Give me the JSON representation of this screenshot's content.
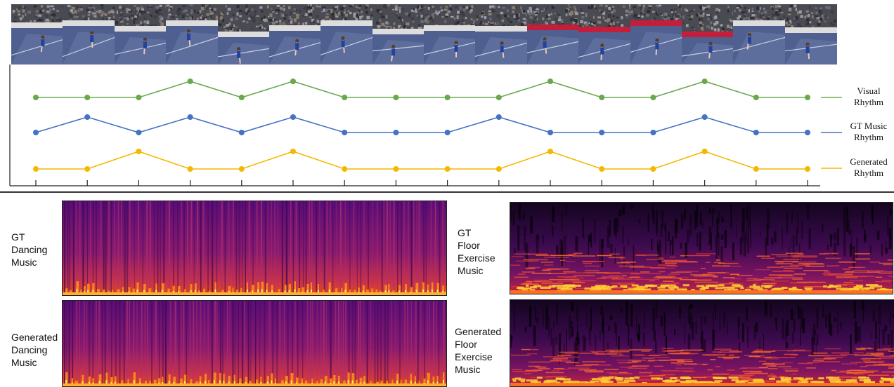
{
  "filmstrip": {
    "frame_count": 16
  },
  "chart_data": {
    "type": "line",
    "x": [
      1,
      2,
      3,
      4,
      5,
      6,
      7,
      8,
      9,
      10,
      11,
      12,
      13,
      14,
      15,
      16
    ],
    "series": [
      {
        "name": "Visual Rhythm",
        "color": "#6aa84f",
        "values": [
          1,
          1,
          1,
          2,
          1,
          2,
          1,
          1,
          1,
          1,
          2,
          1,
          1,
          2,
          1,
          1
        ]
      },
      {
        "name": "GT Music Rhythm",
        "color": "#4472c4",
        "values": [
          1,
          2,
          1,
          2,
          1,
          2,
          1,
          1,
          1,
          2,
          1,
          1,
          1,
          2,
          1,
          1
        ]
      },
      {
        "name": "Generated Rhythm",
        "color": "#f5b800",
        "values": [
          1,
          1,
          2,
          1,
          1,
          2,
          1,
          1,
          1,
          1,
          2,
          1,
          1,
          2,
          1,
          1
        ]
      }
    ],
    "legend": [
      {
        "line1": "Visual",
        "line2": "Rhythm"
      },
      {
        "line1": "GT Music",
        "line2": "Rhythm"
      },
      {
        "line1": "Generated",
        "line2": "Rhythm"
      }
    ],
    "legend_position": "right"
  },
  "spectrograms": [
    {
      "label": [
        "GT",
        "Dancing",
        "Music"
      ]
    },
    {
      "label": [
        "Generated",
        "Dancing",
        "Music"
      ]
    },
    {
      "label": [
        "GT",
        "Floor",
        "Exercise",
        "Music"
      ]
    },
    {
      "label": [
        "Generated",
        "Floor",
        "Exercise",
        "Music"
      ]
    }
  ]
}
